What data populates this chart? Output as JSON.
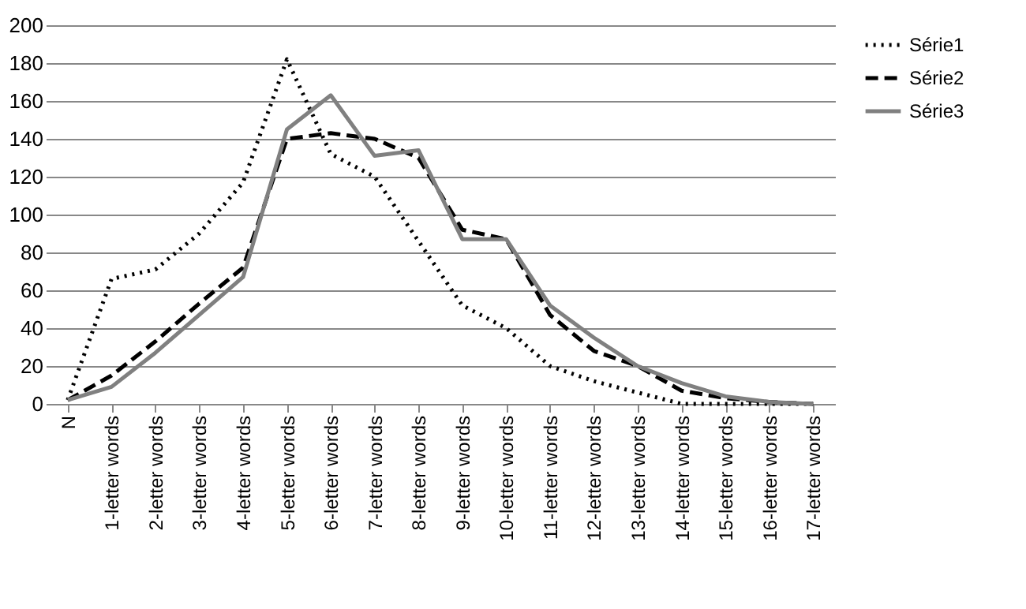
{
  "chart_data": {
    "type": "line",
    "categories": [
      "N",
      "1-letter words",
      "2-letter words",
      "3-letter words",
      "4-letter words",
      "5-letter words",
      "6-letter words",
      "7-letter words",
      "8-letter words",
      "9-letter words",
      "10-letter words",
      "11-letter words",
      "12-letter words",
      "13-letter words",
      "14-letter words",
      "15-letter words",
      "16-letter words",
      "17-letter words"
    ],
    "series": [
      {
        "name": "Série1",
        "color": "#000000",
        "line_style": "dotted",
        "values": [
          2,
          66,
          71,
          90,
          117,
          182,
          132,
          120,
          86,
          52,
          40,
          20,
          12,
          6,
          0,
          0,
          0,
          0
        ]
      },
      {
        "name": "Série2",
        "color": "#000000",
        "line_style": "dashed",
        "values": [
          2,
          15,
          33,
          53,
          72,
          140,
          143,
          140,
          130,
          92,
          87,
          47,
          28,
          20,
          7,
          3,
          1,
          0
        ]
      },
      {
        "name": "Série3",
        "color": "#808080",
        "line_style": "solid",
        "values": [
          2,
          9,
          27,
          47,
          67,
          145,
          163,
          131,
          134,
          87,
          87,
          52,
          35,
          20,
          11,
          4,
          1,
          0
        ]
      }
    ],
    "ylim": [
      0,
      200
    ],
    "yticks": [
      0,
      20,
      40,
      60,
      80,
      100,
      120,
      140,
      160,
      180,
      200
    ],
    "grid": "y",
    "legend": "right",
    "marker": "none"
  }
}
